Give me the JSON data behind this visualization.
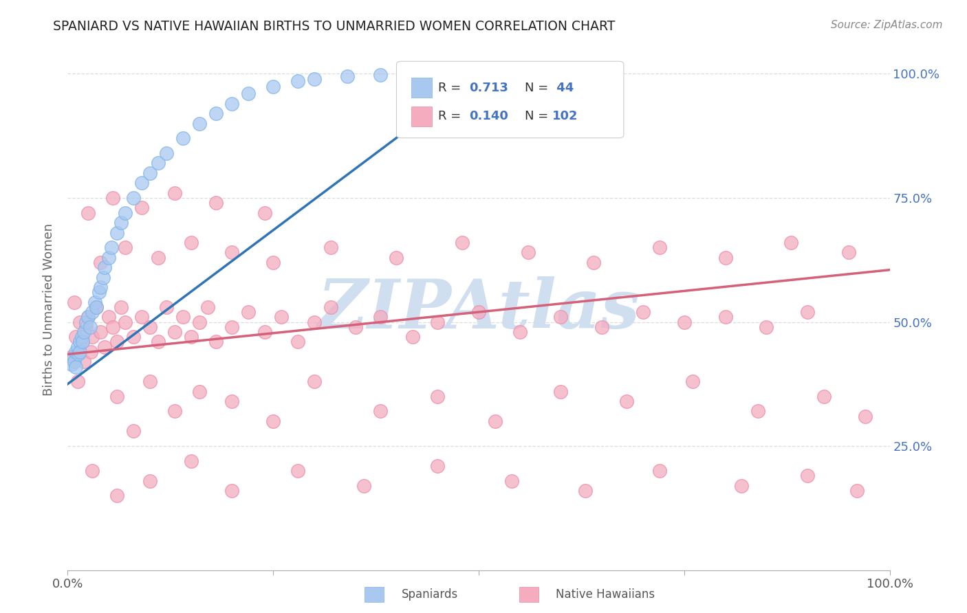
{
  "title": "SPANIARD VS NATIVE HAWAIIAN BIRTHS TO UNMARRIED WOMEN CORRELATION CHART",
  "source_text": "Source: ZipAtlas.com",
  "ylabel": "Births to Unmarried Women",
  "spaniard_color": "#A8C8F0",
  "spaniard_edge_color": "#7EB4EA",
  "native_color": "#F4ACBE",
  "native_edge_color": "#EE8AA8",
  "spaniard_line_color": "#2E75B6",
  "native_line_color": "#D4607A",
  "watermark_color": "#D0DFF0",
  "background_color": "#FFFFFF",
  "tick_color": "#4472C4",
  "ylabel_color": "#666666",
  "title_color": "#222222",
  "source_color": "#888888",
  "grid_color": "#DDDDDD",
  "xlim": [
    0.0,
    1.0
  ],
  "ylim": [
    0.0,
    1.05
  ],
  "yticks": [
    0.25,
    0.5,
    0.75,
    1.0
  ],
  "ytick_labels": [
    "25.0%",
    "50.0%",
    "75.0%",
    "100.0%"
  ],
  "xticks": [
    0.0,
    0.25,
    0.5,
    0.75,
    1.0
  ],
  "xtick_labels": [
    "0.0%",
    "",
    "",
    "",
    "100.0%"
  ],
  "spaniard_trend_x": [
    0.0,
    0.5
  ],
  "spaniard_trend_y": [
    0.375,
    0.995
  ],
  "native_trend_x": [
    0.0,
    1.0
  ],
  "native_trend_y": [
    0.435,
    0.605
  ],
  "legend_R1": "R = 0.713",
  "legend_N1": "N =  44",
  "legend_R2": "R = 0.140",
  "legend_N2": "N = 102",
  "legend_label1": "Spaniards",
  "legend_label2": "Native Hawaiians",
  "sp_x": [
    0.005,
    0.007,
    0.008,
    0.01,
    0.01,
    0.012,
    0.013,
    0.015,
    0.015,
    0.017,
    0.018,
    0.02,
    0.022,
    0.025,
    0.027,
    0.03,
    0.033,
    0.035,
    0.038,
    0.04,
    0.043,
    0.045,
    0.05,
    0.053,
    0.06,
    0.065,
    0.07,
    0.08,
    0.09,
    0.1,
    0.11,
    0.12,
    0.14,
    0.16,
    0.18,
    0.2,
    0.22,
    0.25,
    0.28,
    0.3,
    0.34,
    0.38,
    0.43,
    0.48
  ],
  "sp_y": [
    0.415,
    0.43,
    0.42,
    0.44,
    0.41,
    0.45,
    0.435,
    0.46,
    0.44,
    0.47,
    0.46,
    0.48,
    0.5,
    0.51,
    0.49,
    0.52,
    0.54,
    0.53,
    0.56,
    0.57,
    0.59,
    0.61,
    0.63,
    0.65,
    0.68,
    0.7,
    0.72,
    0.75,
    0.78,
    0.8,
    0.82,
    0.84,
    0.87,
    0.9,
    0.92,
    0.94,
    0.96,
    0.975,
    0.985,
    0.99,
    0.995,
    0.998,
    0.999,
    0.999
  ],
  "nh_x": [
    0.005,
    0.008,
    0.01,
    0.012,
    0.015,
    0.018,
    0.02,
    0.022,
    0.025,
    0.028,
    0.03,
    0.035,
    0.04,
    0.045,
    0.05,
    0.055,
    0.06,
    0.065,
    0.07,
    0.08,
    0.09,
    0.1,
    0.11,
    0.12,
    0.13,
    0.14,
    0.15,
    0.16,
    0.17,
    0.18,
    0.2,
    0.22,
    0.24,
    0.26,
    0.28,
    0.3,
    0.32,
    0.35,
    0.38,
    0.42,
    0.45,
    0.5,
    0.55,
    0.6,
    0.65,
    0.7,
    0.75,
    0.8,
    0.85,
    0.9,
    0.06,
    0.08,
    0.1,
    0.13,
    0.16,
    0.2,
    0.25,
    0.3,
    0.38,
    0.45,
    0.52,
    0.6,
    0.68,
    0.76,
    0.84,
    0.92,
    0.97,
    0.04,
    0.07,
    0.11,
    0.15,
    0.2,
    0.25,
    0.32,
    0.4,
    0.48,
    0.56,
    0.64,
    0.72,
    0.8,
    0.88,
    0.95,
    0.03,
    0.06,
    0.1,
    0.15,
    0.2,
    0.28,
    0.36,
    0.45,
    0.54,
    0.63,
    0.72,
    0.82,
    0.9,
    0.96,
    0.025,
    0.055,
    0.09,
    0.13,
    0.18,
    0.24
  ],
  "nh_y": [
    0.43,
    0.54,
    0.47,
    0.38,
    0.5,
    0.46,
    0.42,
    0.49,
    0.51,
    0.44,
    0.47,
    0.53,
    0.48,
    0.45,
    0.51,
    0.49,
    0.46,
    0.53,
    0.5,
    0.47,
    0.51,
    0.49,
    0.46,
    0.53,
    0.48,
    0.51,
    0.47,
    0.5,
    0.53,
    0.46,
    0.49,
    0.52,
    0.48,
    0.51,
    0.46,
    0.5,
    0.53,
    0.49,
    0.51,
    0.47,
    0.5,
    0.52,
    0.48,
    0.51,
    0.49,
    0.52,
    0.5,
    0.51,
    0.49,
    0.52,
    0.35,
    0.28,
    0.38,
    0.32,
    0.36,
    0.34,
    0.3,
    0.38,
    0.32,
    0.35,
    0.3,
    0.36,
    0.34,
    0.38,
    0.32,
    0.35,
    0.31,
    0.62,
    0.65,
    0.63,
    0.66,
    0.64,
    0.62,
    0.65,
    0.63,
    0.66,
    0.64,
    0.62,
    0.65,
    0.63,
    0.66,
    0.64,
    0.2,
    0.15,
    0.18,
    0.22,
    0.16,
    0.2,
    0.17,
    0.21,
    0.18,
    0.16,
    0.2,
    0.17,
    0.19,
    0.16,
    0.72,
    0.75,
    0.73,
    0.76,
    0.74,
    0.72
  ]
}
